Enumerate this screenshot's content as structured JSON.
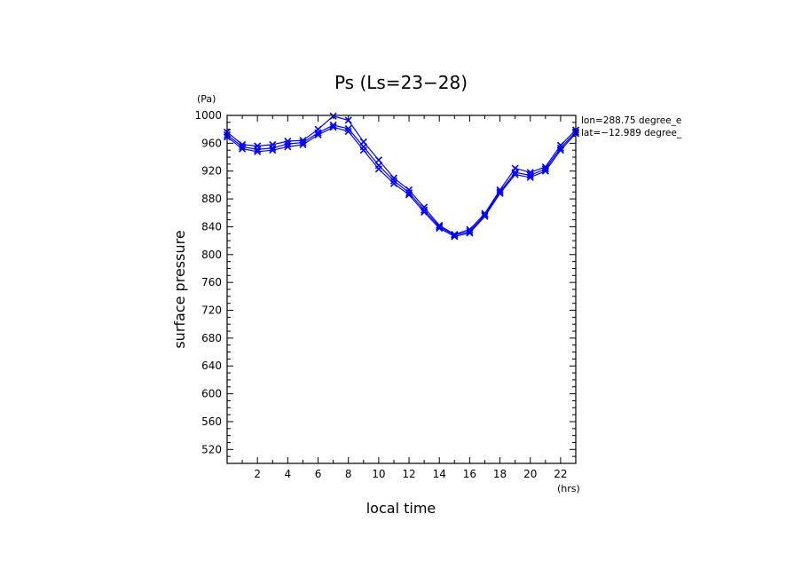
{
  "chart_data": {
    "type": "line",
    "title": "Ps (Ls=23−28)",
    "xlabel": "local time",
    "ylabel": "surface pressure",
    "x_unit": "(hrs)",
    "y_unit": "(Pa)",
    "xlim": [
      0,
      23
    ],
    "ylim": [
      500,
      1000
    ],
    "x_ticks": [
      2,
      4,
      6,
      8,
      10,
      12,
      14,
      16,
      18,
      20,
      22
    ],
    "y_ticks": [
      520,
      560,
      600,
      640,
      680,
      720,
      760,
      800,
      840,
      880,
      920,
      960,
      1000
    ],
    "y_tick_labels": [
      "520",
      "560",
      "600",
      "640",
      "680",
      "720",
      "760",
      "800",
      "840",
      "880",
      "920",
      "960",
      "1000"
    ],
    "grid": false,
    "annotations": [
      "lon=288.75 degree_e",
      "lat=−12.989 degree_"
    ],
    "line_color": "#0000ff",
    "marker": "x",
    "x": [
      0,
      1,
      2,
      3,
      4,
      5,
      6,
      7,
      8,
      9,
      10,
      11,
      12,
      13,
      14,
      15,
      16,
      17,
      18,
      19,
      20,
      21,
      22,
      23
    ],
    "series": [
      {
        "values": [
          972,
          955,
          951,
          953,
          959,
          961,
          975,
          986,
          981,
          955,
          928,
          906,
          889,
          864,
          840,
          828,
          833,
          857,
          890,
          918,
          914,
          923,
          953,
          976
        ]
      },
      {
        "values": [
          976,
          958,
          956,
          958,
          963,
          964,
          980,
          999,
          993,
          962,
          936,
          910,
          893,
          868,
          842,
          829,
          836,
          859,
          893,
          924,
          918,
          926,
          957,
          979
        ]
      },
      {
        "values": [
          969,
          952,
          948,
          950,
          955,
          958,
          972,
          983,
          977,
          950,
          923,
          902,
          886,
          861,
          838,
          826,
          831,
          855,
          888,
          915,
          911,
          920,
          950,
          974
        ]
      }
    ]
  }
}
